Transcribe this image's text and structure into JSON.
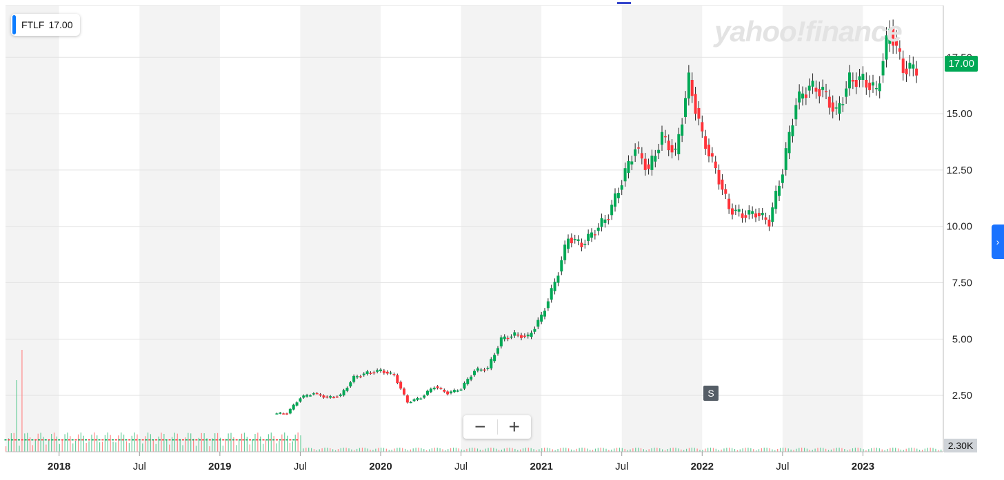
{
  "legend": {
    "symbol": "FTLF",
    "value": "17.00"
  },
  "watermark": "yahoo!finance",
  "price_badge": "17.00",
  "volume_badge": "2.30K",
  "split_marker": "S",
  "zoom": {
    "minus": "−",
    "plus": "+"
  },
  "side_button": "›",
  "colors": {
    "up": "#00a855",
    "down": "#ff333a",
    "badge": "#00a855",
    "accent": "#0c7cff"
  },
  "chart_data": {
    "type": "candlestick",
    "symbol": "FTLF",
    "y_ticks": [
      "2.50",
      "5.00",
      "7.50",
      "10.00",
      "12.50",
      "15.00",
      "17.50"
    ],
    "ylim": [
      0,
      19.8
    ],
    "x_ticks": [
      "2018",
      "Jul",
      "2019",
      "Jul",
      "2020",
      "Jul",
      "2021",
      "Jul",
      "2022",
      "Jul",
      "2023"
    ],
    "x_tick_dates": [
      "2018-01",
      "2018-07",
      "2019-01",
      "2019-07",
      "2020-01",
      "2020-07",
      "2021-01",
      "2021-07",
      "2022-01",
      "2022-07",
      "2023-01"
    ],
    "last_price": 17.0,
    "grid": true,
    "close_series": [
      [
        "2019-06",
        1.7
      ],
      [
        "2019-07",
        2.4
      ],
      [
        "2019-08",
        2.6
      ],
      [
        "2019-09",
        2.4
      ],
      [
        "2019-10",
        2.5
      ],
      [
        "2019-11",
        3.3
      ],
      [
        "2019-12",
        3.5
      ],
      [
        "2020-01",
        3.6
      ],
      [
        "2020-02",
        3.4
      ],
      [
        "2020-03",
        2.2
      ],
      [
        "2020-04",
        2.4
      ],
      [
        "2020-05",
        2.9
      ],
      [
        "2020-06",
        2.6
      ],
      [
        "2020-07",
        2.8
      ],
      [
        "2020-08",
        3.6
      ],
      [
        "2020-09",
        3.7
      ],
      [
        "2020-10",
        5.0
      ],
      [
        "2020-11",
        5.2
      ],
      [
        "2020-12",
        5.1
      ],
      [
        "2021-01",
        6.0
      ],
      [
        "2021-02",
        7.5
      ],
      [
        "2021-03",
        9.5
      ],
      [
        "2021-04",
        9.2
      ],
      [
        "2021-05",
        9.8
      ],
      [
        "2021-06",
        10.5
      ],
      [
        "2021-07",
        12.0
      ],
      [
        "2021-08",
        13.5
      ],
      [
        "2021-09",
        12.5
      ],
      [
        "2021-10",
        14.0
      ],
      [
        "2021-11",
        13.2
      ],
      [
        "2021-12",
        16.5
      ],
      [
        "2022-01",
        14.0
      ],
      [
        "2022-02",
        12.5
      ],
      [
        "2022-03",
        10.8
      ],
      [
        "2022-04",
        10.5
      ],
      [
        "2022-05",
        10.6
      ],
      [
        "2022-06",
        10.2
      ],
      [
        "2022-07",
        12.5
      ],
      [
        "2022-08",
        15.5
      ],
      [
        "2022-09",
        16.2
      ],
      [
        "2022-10",
        16.0
      ],
      [
        "2022-11",
        15.0
      ],
      [
        "2022-12",
        16.5
      ],
      [
        "2023-01",
        16.5
      ],
      [
        "2023-02",
        16.0
      ],
      [
        "2023-03",
        18.8
      ],
      [
        "2023-04",
        17.0
      ],
      [
        "2023-05",
        17.0
      ]
    ]
  }
}
